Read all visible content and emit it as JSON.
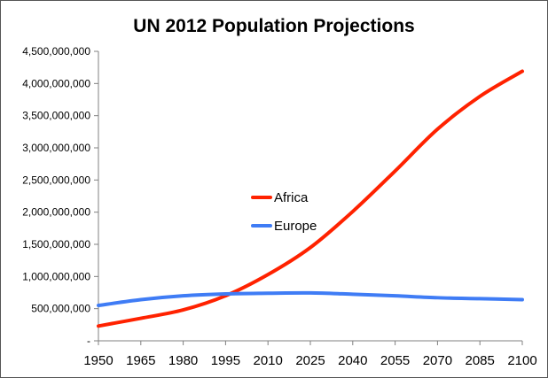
{
  "chart_data": {
    "type": "line",
    "title": "UN 2012 Population Projections",
    "xlabel": "",
    "ylabel": "",
    "x": [
      1950,
      1965,
      1980,
      1995,
      2010,
      2025,
      2040,
      2055,
      2070,
      2085,
      2100
    ],
    "x_tick_labels": [
      "1950",
      "1965",
      "1980",
      "1995",
      "2010",
      "2025",
      "2040",
      "2055",
      "2070",
      "2085",
      "2100"
    ],
    "xlim": [
      1950,
      2100
    ],
    "ylim": [
      0,
      4500000000
    ],
    "y_ticks": [
      0,
      500000000,
      1000000000,
      1500000000,
      2000000000,
      2500000000,
      3000000000,
      3500000000,
      4000000000,
      4500000000
    ],
    "y_tick_labels": [
      "-",
      "500,000,000",
      "1,000,000,000",
      "1,500,000,000",
      "2,000,000,000",
      "2,500,000,000",
      "3,000,000,000",
      "3,500,000,000",
      "4,000,000,000",
      "4,500,000,000"
    ],
    "grid": false,
    "legend_position": "center",
    "series": [
      {
        "name": "Africa",
        "color": "#ff2200",
        "values": [
          230000000,
          350000000,
          480000000,
          700000000,
          1030000000,
          1450000000,
          2010000000,
          2640000000,
          3290000000,
          3800000000,
          4190000000
        ]
      },
      {
        "name": "Europe",
        "color": "#3f7cf5",
        "values": [
          550000000,
          640000000,
          700000000,
          730000000,
          740000000,
          745000000,
          725000000,
          700000000,
          670000000,
          655000000,
          640000000
        ]
      }
    ]
  }
}
